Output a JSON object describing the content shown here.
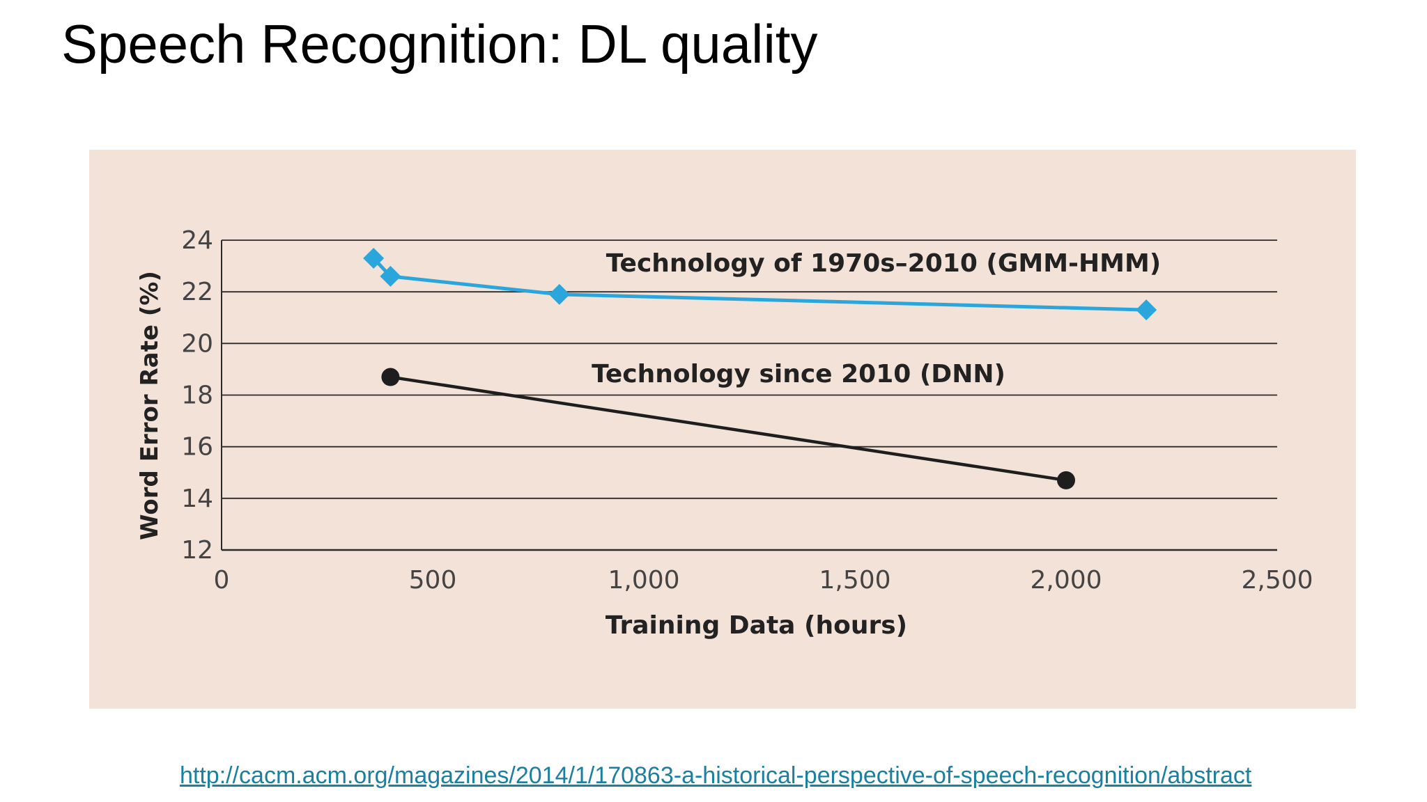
{
  "slide": {
    "title": "Speech Recognition: DL quality",
    "source_url": "http://cacm.acm.org/magazines/2014/1/170863-a-historical-perspective-of-speech-recognition/abstract"
  },
  "colors": {
    "panel_background": "#f3e2d8",
    "gmm_series": "#2aa6dc",
    "dnn_series": "#1e1e1e",
    "grid": "#2a2a2a",
    "tick_text": "#444444",
    "link": "#1a7fa0"
  },
  "chart_data": {
    "type": "line",
    "xlabel": "Training Data (hours)",
    "ylabel": "Word Error Rate (%)",
    "xlim": [
      0,
      2500
    ],
    "ylim": [
      12,
      24
    ],
    "x_ticks": [
      0,
      500,
      1000,
      1500,
      2000,
      2500
    ],
    "x_tick_labels": [
      "0",
      "500",
      "1,000",
      "1,500",
      "2,000",
      "2,500"
    ],
    "y_ticks": [
      12,
      14,
      16,
      18,
      20,
      22,
      24
    ],
    "y_tick_labels": [
      "12",
      "14",
      "16",
      "18",
      "20",
      "22",
      "24"
    ],
    "grid": "horizontal",
    "series": [
      {
        "name": "Technology of 1970s–2010 (GMM-HMM)",
        "marker": "diamond",
        "color": "#2aa6dc",
        "x": [
          360,
          400,
          800,
          2190
        ],
        "y": [
          23.3,
          22.6,
          21.9,
          21.3
        ]
      },
      {
        "name": "Technology since 2010 (DNN)",
        "marker": "circle",
        "color": "#1e1e1e",
        "x": [
          400,
          2000
        ],
        "y": [
          18.7,
          14.7
        ]
      }
    ]
  }
}
